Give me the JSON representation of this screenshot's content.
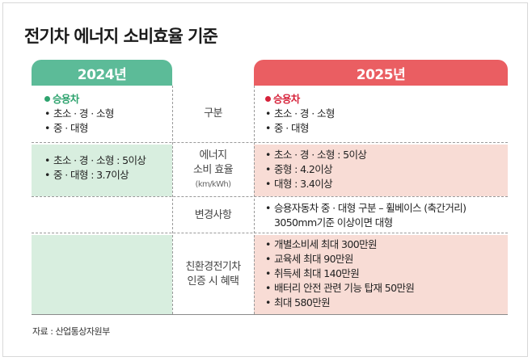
{
  "title": "전기차 에너지 소비효율 기준",
  "columns": {
    "left": "2024년",
    "right": "2025년"
  },
  "rows": {
    "category": {
      "label": "구분",
      "left": {
        "heading": "승용차",
        "items": [
          "초소 · 경 · 소형",
          "중 · 대형"
        ]
      },
      "right": {
        "heading": "승용차",
        "items": [
          "초소 · 경 · 소형",
          "중 · 대형"
        ]
      }
    },
    "efficiency": {
      "label_line1": "에너지",
      "label_line2": "소비 효율",
      "label_unit": "(km/kWh)",
      "left": [
        "초소 · 경 · 소형 : 5이상",
        "중 · 대형 : 3.7이상"
      ],
      "right": [
        "초소 · 경 · 소형 : 5이상",
        "중형 : 4.2이상",
        "대형 : 3.4이상"
      ]
    },
    "changes": {
      "label": "변경사항",
      "right": [
        "승용자동차 중 · 대형 구분 – 휠베이스 (축간거리) 3050mm기준 이상이면 대형"
      ]
    },
    "benefits": {
      "label_line1": "친환경전기차",
      "label_line2": "인증 시 혜택",
      "right": [
        "개별소비세 최대 300만원",
        "교육세 최대 90만원",
        "취득세 최대 140만원",
        "배터리 안전 관련 기능 탑재 50만원",
        "최대 580만원"
      ]
    }
  },
  "source": "자료 : 산업통상자원부",
  "colors": {
    "green_header": "#5cbb98",
    "red_header": "#ea5e62",
    "green_fill": "#d8eedf",
    "pink_fill": "#f8dcd5",
    "green_text": "#2ea36e",
    "red_text": "#d6223a"
  }
}
